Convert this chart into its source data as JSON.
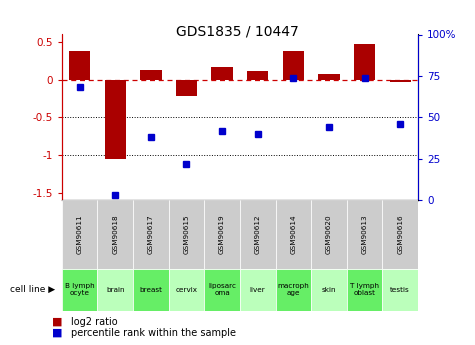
{
  "title": "GDS1835 / 10447",
  "samples": [
    "GSM90611",
    "GSM90618",
    "GSM90617",
    "GSM90615",
    "GSM90619",
    "GSM90612",
    "GSM90614",
    "GSM90620",
    "GSM90613",
    "GSM90616"
  ],
  "cell_lines": [
    "B lymph\nocyte",
    "brain",
    "breast",
    "cervix",
    "liposarc\noma",
    "liver",
    "macroph\nage",
    "skin",
    "T lymph\noblast",
    "testis"
  ],
  "log2_ratio": [
    0.38,
    -1.05,
    0.13,
    -0.22,
    0.17,
    0.12,
    0.38,
    0.07,
    0.47,
    -0.03
  ],
  "percentile_rank": [
    68,
    3,
    38,
    22,
    42,
    40,
    74,
    44,
    74,
    46
  ],
  "bar_color": "#aa0000",
  "dot_color": "#0000cc",
  "ylim_left": [
    -1.6,
    0.6
  ],
  "ylim_right": [
    0,
    100
  ],
  "sample_bg_color": "#cccccc",
  "cell_line_bg_color": "#bbffbb",
  "cell_line_highlight_color": "#66ee66"
}
